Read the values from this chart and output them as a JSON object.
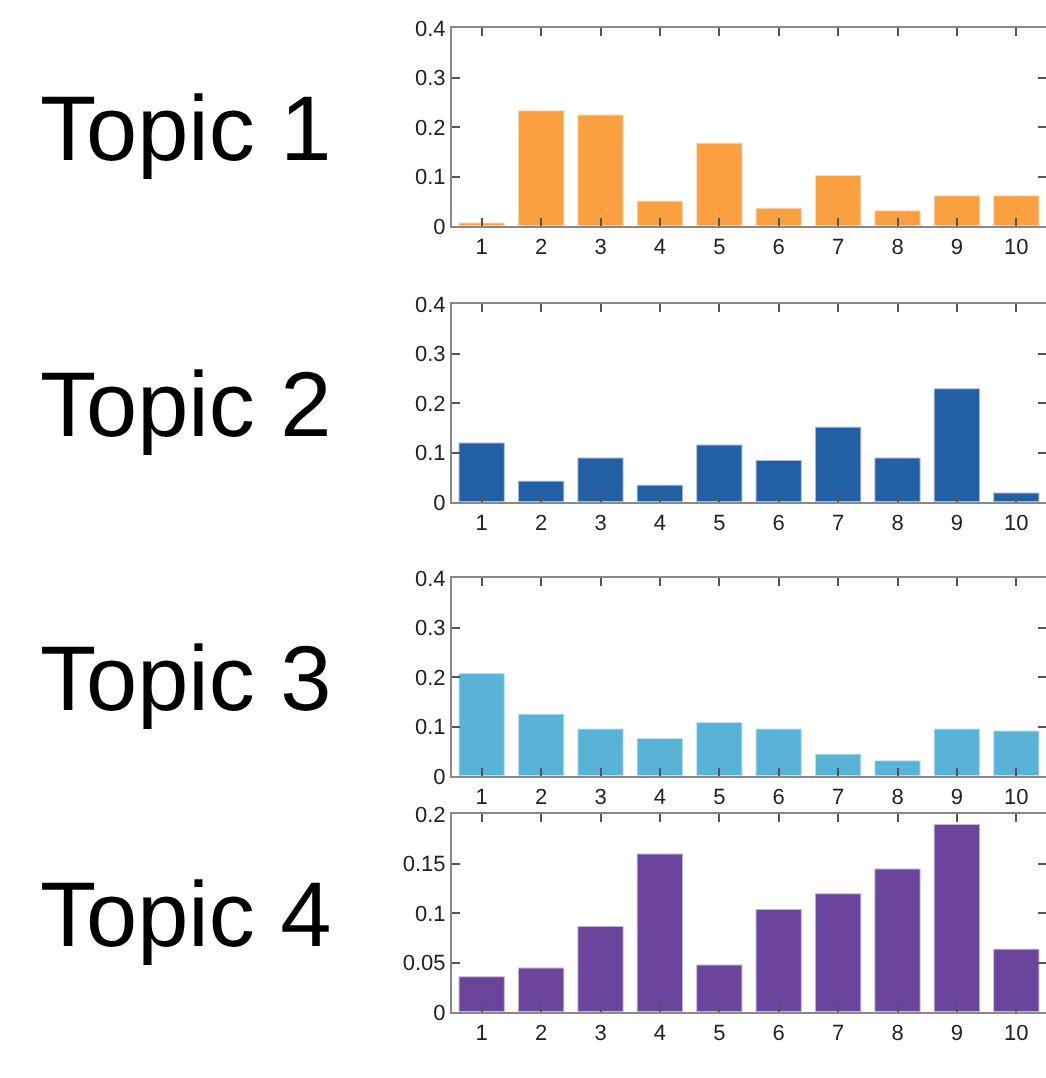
{
  "chart_data": [
    {
      "type": "bar",
      "title": "Topic 1",
      "categories": [
        "1",
        "2",
        "3",
        "4",
        "5",
        "6",
        "7",
        "8",
        "9",
        "10"
      ],
      "values": [
        0.007,
        0.234,
        0.225,
        0.051,
        0.168,
        0.037,
        0.103,
        0.032,
        0.062,
        0.062
      ],
      "color": "#fba040",
      "ylim": [
        0,
        0.4
      ],
      "yticks": [
        0,
        0.1,
        0.2,
        0.3,
        0.4
      ]
    },
    {
      "type": "bar",
      "title": "Topic 2",
      "categories": [
        "1",
        "2",
        "3",
        "4",
        "5",
        "6",
        "7",
        "8",
        "9",
        "10"
      ],
      "values": [
        0.12,
        0.043,
        0.09,
        0.035,
        0.116,
        0.085,
        0.152,
        0.09,
        0.23,
        0.019
      ],
      "color": "#235fa4",
      "ylim": [
        0,
        0.4
      ],
      "yticks": [
        0,
        0.1,
        0.2,
        0.3,
        0.4
      ]
    },
    {
      "type": "bar",
      "title": "Topic 3",
      "categories": [
        "1",
        "2",
        "3",
        "4",
        "5",
        "6",
        "7",
        "8",
        "9",
        "10"
      ],
      "values": [
        0.208,
        0.126,
        0.096,
        0.077,
        0.109,
        0.096,
        0.045,
        0.032,
        0.096,
        0.092
      ],
      "color": "#58b3d7",
      "ylim": [
        0,
        0.4
      ],
      "yticks": [
        0,
        0.1,
        0.2,
        0.3,
        0.4
      ]
    },
    {
      "type": "bar",
      "title": "Topic 4",
      "categories": [
        "1",
        "2",
        "3",
        "4",
        "5",
        "6",
        "7",
        "8",
        "9",
        "10"
      ],
      "values": [
        0.036,
        0.045,
        0.087,
        0.16,
        0.048,
        0.104,
        0.12,
        0.145,
        0.19,
        0.064
      ],
      "color": "#6a459b",
      "ylim": [
        0,
        0.2
      ],
      "yticks": [
        0,
        0.05,
        0.1,
        0.15,
        0.2
      ]
    }
  ]
}
